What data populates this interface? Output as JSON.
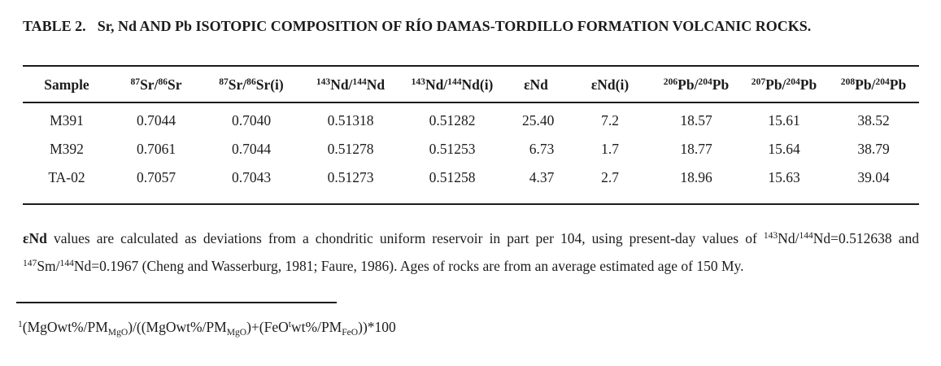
{
  "title": {
    "label": "TABLE 2.",
    "text": "Sr, Nd AND Pb ISOTOPIC COMPOSITION OF RÍO DAMAS-TORDILLO FORMATION VOLCANIC ROCKS."
  },
  "table": {
    "columns": [
      {
        "name": "Sample",
        "rich": [
          {
            "t": "Sample"
          }
        ]
      },
      {
        "name": "87Sr/86Sr",
        "rich": [
          {
            "t": "87",
            "s": "sup"
          },
          {
            "t": "Sr/"
          },
          {
            "t": "86",
            "s": "sup"
          },
          {
            "t": "Sr"
          }
        ]
      },
      {
        "name": "87Sr/86Sr(i)",
        "rich": [
          {
            "t": "87",
            "s": "sup"
          },
          {
            "t": "Sr/"
          },
          {
            "t": "86",
            "s": "sup"
          },
          {
            "t": "Sr(i)"
          }
        ]
      },
      {
        "name": "143Nd/144Nd",
        "rich": [
          {
            "t": "143",
            "s": "sup"
          },
          {
            "t": "Nd/"
          },
          {
            "t": "144",
            "s": "sup"
          },
          {
            "t": "Nd"
          }
        ]
      },
      {
        "name": "143Nd/144Nd(i)",
        "rich": [
          {
            "t": "143",
            "s": "sup"
          },
          {
            "t": "Nd/"
          },
          {
            "t": "144",
            "s": "sup"
          },
          {
            "t": "Nd(i)"
          }
        ]
      },
      {
        "name": "εNd",
        "rich": [
          {
            "t": "εNd"
          }
        ]
      },
      {
        "name": "εNd(i)",
        "rich": [
          {
            "t": "εNd(i)"
          }
        ]
      },
      {
        "name": "206Pb/204Pb",
        "rich": [
          {
            "t": "206",
            "s": "sup"
          },
          {
            "t": "Pb/"
          },
          {
            "t": "204",
            "s": "sup"
          },
          {
            "t": "Pb"
          }
        ]
      },
      {
        "name": "207Pb/204Pb",
        "rich": [
          {
            "t": "207",
            "s": "sup"
          },
          {
            "t": "Pb/"
          },
          {
            "t": "204",
            "s": "sup"
          },
          {
            "t": "Pb"
          }
        ]
      },
      {
        "name": "208Pb/204Pb",
        "rich": [
          {
            "t": "208",
            "s": "sup"
          },
          {
            "t": "Pb/"
          },
          {
            "t": "204",
            "s": "sup"
          },
          {
            "t": "Pb"
          }
        ]
      }
    ],
    "rows": [
      {
        "sample": "M391",
        "values": [
          "0.7044",
          "0.7040",
          "0.51318",
          "0.51282",
          "25.40",
          "7.2",
          "18.57",
          "15.61",
          "38.52"
        ]
      },
      {
        "sample": "M392",
        "values": [
          "0.7061",
          "0.7044",
          "0.51278",
          "0.51253",
          "6.73",
          "1.7",
          "18.77",
          "15.64",
          "38.79"
        ]
      },
      {
        "sample": "TA-02",
        "values": [
          "0.7057",
          "0.7043",
          "0.51273",
          "0.51258",
          "4.37",
          "2.7",
          "18.96",
          "15.63",
          "39.04"
        ]
      }
    ]
  },
  "notes": {
    "epsilon_note_rich": [
      {
        "t": "εNd",
        "s": "b"
      },
      {
        "t": " values are calculated as deviations from a chondritic uniform reservoir in part per 104, using present-day values of "
      },
      {
        "t": "143",
        "s": "sup"
      },
      {
        "t": "Nd/"
      },
      {
        "t": "144",
        "s": "sup"
      },
      {
        "t": "Nd=0.512638 and "
      },
      {
        "t": "147",
        "s": "sup"
      },
      {
        "t": "Sm/"
      },
      {
        "t": "144",
        "s": "sup"
      },
      {
        "t": "Nd=0.1967 (Cheng and Wasserburg, 1981; Faure, 1986). Ages of rocks are from an average estimated age of 150 My."
      }
    ],
    "formula_rich": [
      {
        "t": "1",
        "s": "sup"
      },
      {
        "t": "(MgOwt%/PM"
      },
      {
        "t": "MgO",
        "s": "sub"
      },
      {
        "t": ")/((MgOwt%/PM"
      },
      {
        "t": "MgO",
        "s": "sub"
      },
      {
        "t": ")+(FeO"
      },
      {
        "t": "t",
        "s": "sup"
      },
      {
        "t": "wt%/PM"
      },
      {
        "t": "FeO",
        "s": "sub"
      },
      {
        "t": "))*100"
      }
    ]
  },
  "colors": {
    "text": "#1c1c1c",
    "rule": "#1c1c1c",
    "background": "#ffffff"
  }
}
